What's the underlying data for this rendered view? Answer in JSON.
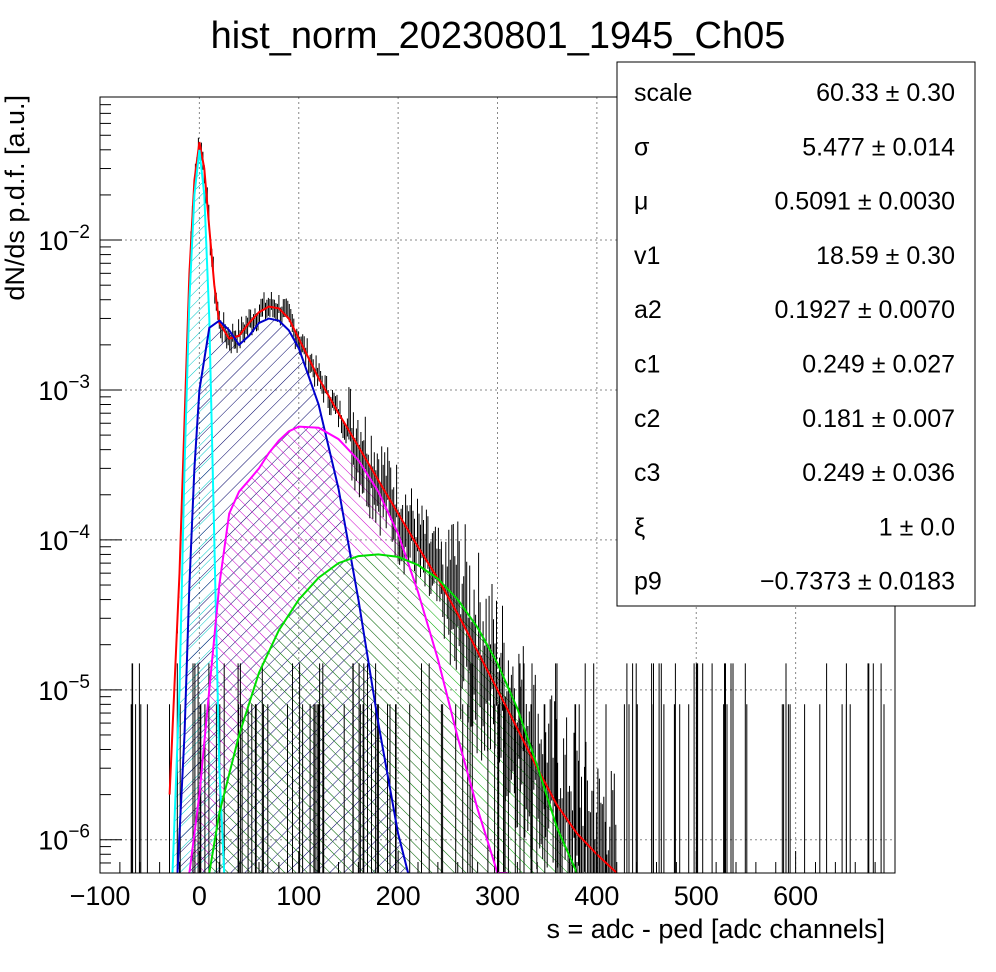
{
  "chart_data": {
    "type": "line",
    "title": "hist_norm_20230801_1945_Ch05",
    "xlabel": "s = adc - ped [adc channels]",
    "ylabel": "dN/ds p.d.f. [a.u.]",
    "xlim": [
      -100,
      700
    ],
    "ylim": [
      6e-07,
      0.09
    ],
    "log_y": true,
    "grid": true,
    "x_ticks": [
      {
        "value": -100,
        "label": "−100"
      },
      {
        "value": 0,
        "label": "0"
      },
      {
        "value": 100,
        "label": "100"
      },
      {
        "value": 200,
        "label": "200"
      },
      {
        "value": 300,
        "label": "300"
      },
      {
        "value": 400,
        "label": "400"
      },
      {
        "value": 500,
        "label": "500"
      },
      {
        "value": 600,
        "label": "600"
      }
    ],
    "y_ticks": [
      {
        "value": 1e-06,
        "base": "10",
        "exp": "−6"
      },
      {
        "value": 1e-05,
        "base": "10",
        "exp": "−5"
      },
      {
        "value": 0.0001,
        "base": "10",
        "exp": "−4"
      },
      {
        "value": 0.001,
        "base": "10",
        "exp": "−3"
      },
      {
        "value": 0.01,
        "base": "10",
        "exp": "−2"
      }
    ],
    "series": [
      {
        "color": "#ff0000",
        "style": "total fit",
        "x": [
          -30,
          -20,
          -10,
          -5,
          0,
          5,
          10,
          15,
          20,
          30,
          40,
          50,
          60,
          70,
          80,
          90,
          100,
          120,
          140,
          160,
          180,
          200,
          220,
          240,
          260,
          280,
          300,
          320,
          340,
          360,
          380,
          400,
          420
        ],
        "y": [
          2e-06,
          6e-05,
          0.006,
          0.025,
          0.045,
          0.03,
          0.012,
          0.005,
          0.0028,
          0.0022,
          0.0023,
          0.0028,
          0.0033,
          0.0036,
          0.0035,
          0.003,
          0.0022,
          0.0012,
          0.0007,
          0.00042,
          0.00025,
          0.00015,
          9e-05,
          5.5e-05,
          3.2e-05,
          1.8e-05,
          1e-05,
          5.5e-06,
          3e-06,
          1.7e-06,
          1.1e-06,
          8e-07,
          6e-07
        ]
      },
      {
        "color": "#00ffff",
        "style": "pedestal component (hatched)",
        "x": [
          -27,
          -20,
          -15,
          -10,
          -5,
          0,
          5,
          10,
          15,
          20,
          25
        ],
        "y": [
          6e-07,
          1e-05,
          0.0003,
          0.004,
          0.02,
          0.04,
          0.02,
          0.003,
          0.0001,
          3e-06,
          6e-07
        ]
      },
      {
        "color": "#0000cc",
        "style": "1 p.e. component (hatched)",
        "x": [
          -22,
          -15,
          -10,
          -5,
          0,
          10,
          20,
          30,
          40,
          50,
          60,
          70,
          80,
          90,
          100,
          120,
          140,
          160,
          180,
          200,
          210
        ],
        "y": [
          6e-07,
          5e-06,
          5e-05,
          0.0003,
          0.001,
          0.0026,
          0.0029,
          0.0025,
          0.002,
          0.0023,
          0.0028,
          0.003,
          0.0029,
          0.0025,
          0.0019,
          0.0008,
          0.00022,
          4e-05,
          6e-06,
          1.1e-06,
          6e-07
        ]
      },
      {
        "color": "#ff00ff",
        "style": "2 p.e. component (hatched)",
        "x": [
          -10,
          0,
          10,
          20,
          30,
          40,
          50,
          60,
          70,
          80,
          90,
          100,
          120,
          140,
          160,
          180,
          200,
          220,
          240,
          260,
          280,
          300,
          310
        ],
        "y": [
          6e-07,
          2e-06,
          1e-05,
          5e-05,
          0.00015,
          0.00021,
          0.00025,
          0.0003,
          0.00038,
          0.00046,
          0.00053,
          0.00057,
          0.00056,
          0.00047,
          0.00034,
          0.00021,
          0.00011,
          4.5e-05,
          1.6e-05,
          4.8e-06,
          1.6e-06,
          6e-07,
          6e-07
        ]
      },
      {
        "color": "#00dd00",
        "style": "3 p.e. component (hatched)",
        "x": [
          10,
          20,
          40,
          60,
          80,
          100,
          120,
          140,
          160,
          180,
          200,
          220,
          240,
          260,
          280,
          300,
          320,
          340,
          360,
          380
        ],
        "y": [
          6e-07,
          1.5e-06,
          5e-06,
          1.3e-05,
          2.5e-05,
          4e-05,
          5.6e-05,
          7e-05,
          7.8e-05,
          8e-05,
          7.7e-05,
          6.8e-05,
          5.5e-05,
          4e-05,
          2.6e-05,
          1.5e-05,
          7.5e-06,
          3.1e-06,
          1.2e-06,
          6e-07
        ]
      }
    ]
  },
  "stats": [
    {
      "name": "scale",
      "value": "60.33 ± 0.30"
    },
    {
      "name": "σ",
      "value": "5.477 ± 0.014"
    },
    {
      "name": "μ",
      "value": "0.5091 ± 0.0030"
    },
    {
      "name": "v1",
      "value": "18.59 ± 0.30"
    },
    {
      "name": "a2",
      "value": "0.1927 ± 0.0070"
    },
    {
      "name": "c1",
      "value": "0.249 ± 0.027"
    },
    {
      "name": "c2",
      "value": "0.181 ± 0.007"
    },
    {
      "name": "c3",
      "value": "0.249 ± 0.036"
    },
    {
      "name": "ξ",
      "value": "1 ± 0.0"
    },
    {
      "name": "p9",
      "value": "−0.7373 ± 0.0183"
    }
  ]
}
